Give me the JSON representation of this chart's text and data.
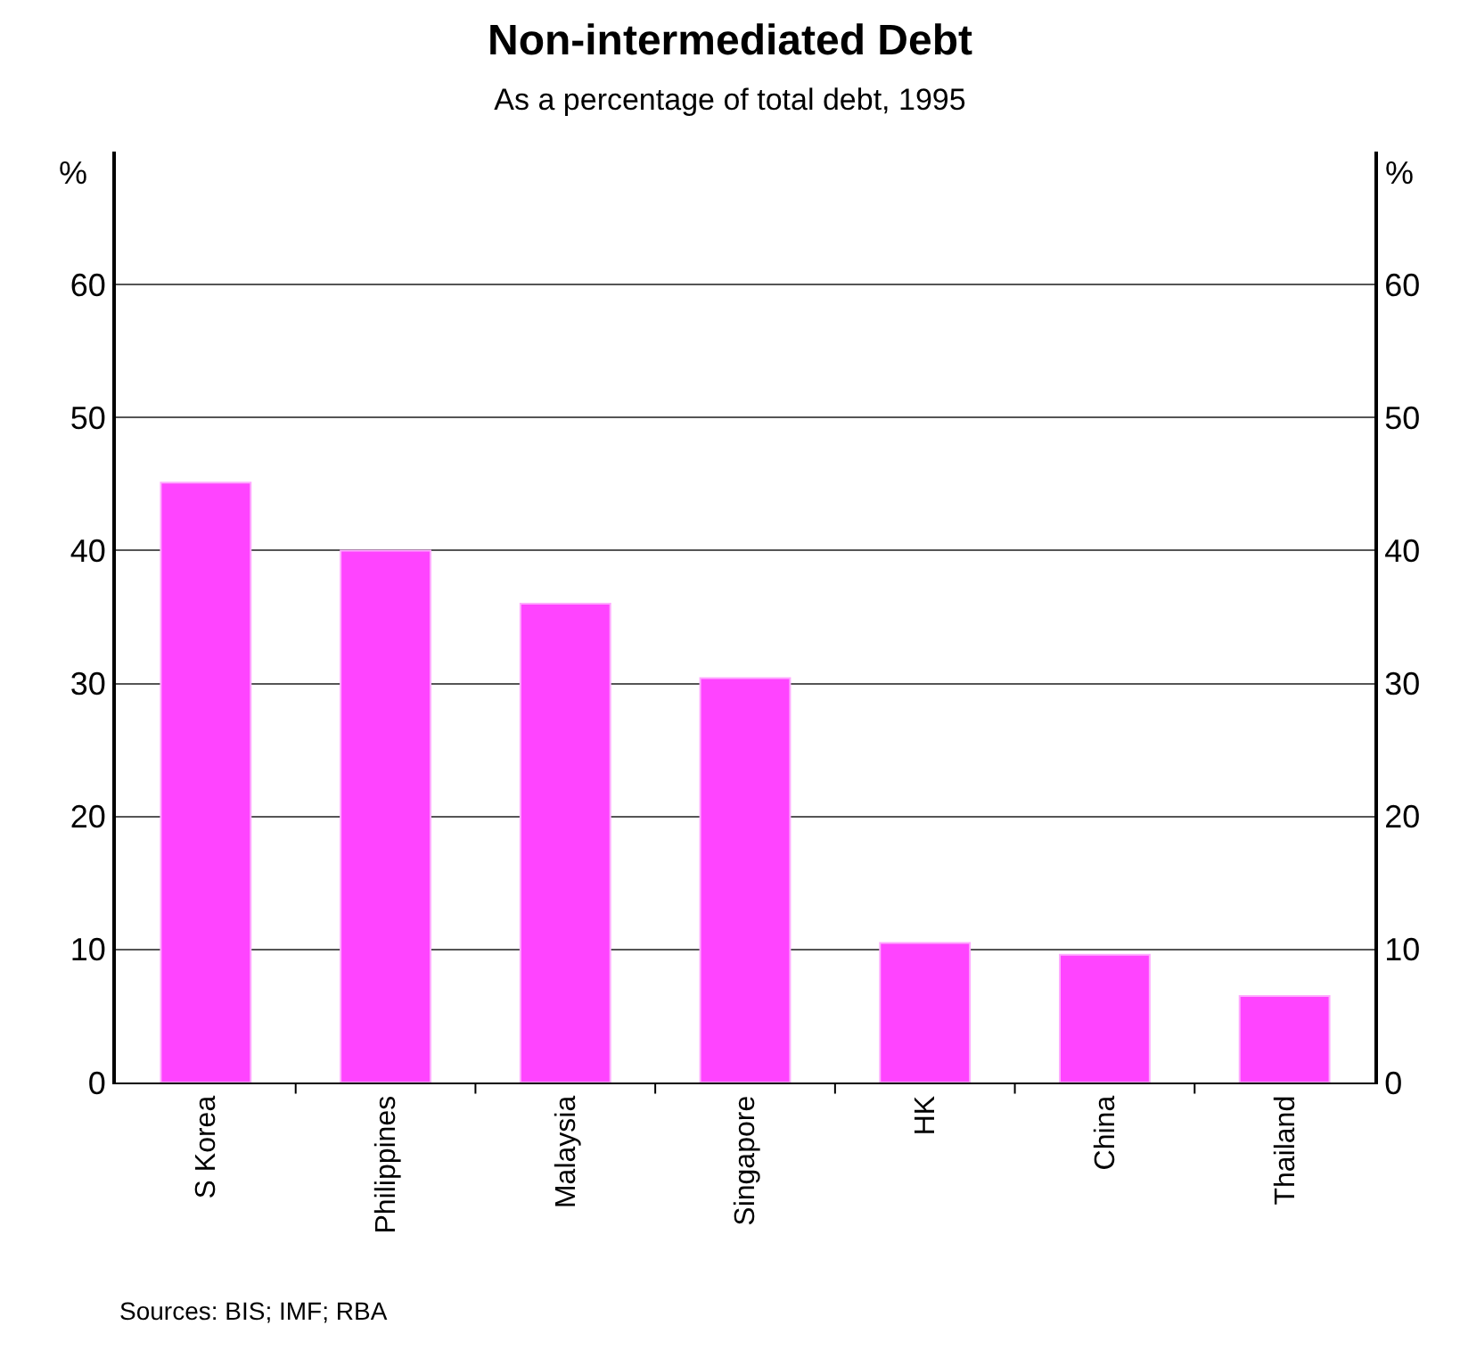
{
  "chart_data": {
    "type": "bar",
    "title": "Non-intermediated Debt",
    "subtitle": "As a percentage of total debt, 1995",
    "ylabel": "%",
    "y2label": "%",
    "categories": [
      "S Korea",
      "Philippines",
      "Malaysia",
      "Singapore",
      "HK",
      "China",
      "Thailand"
    ],
    "values": [
      45.1,
      40,
      36,
      30.4,
      10.5,
      9.6,
      6.5
    ],
    "color": "#ff44ff",
    "ylim": [
      0,
      70
    ],
    "yticks": [
      0,
      10,
      20,
      30,
      40,
      50,
      60
    ],
    "y2lim": [
      0,
      70
    ],
    "y2ticks": [
      0,
      10,
      20,
      30,
      40,
      50,
      60
    ],
    "grid": "y",
    "annotations": [
      "Sources: BIS; IMF; RBA"
    ]
  }
}
